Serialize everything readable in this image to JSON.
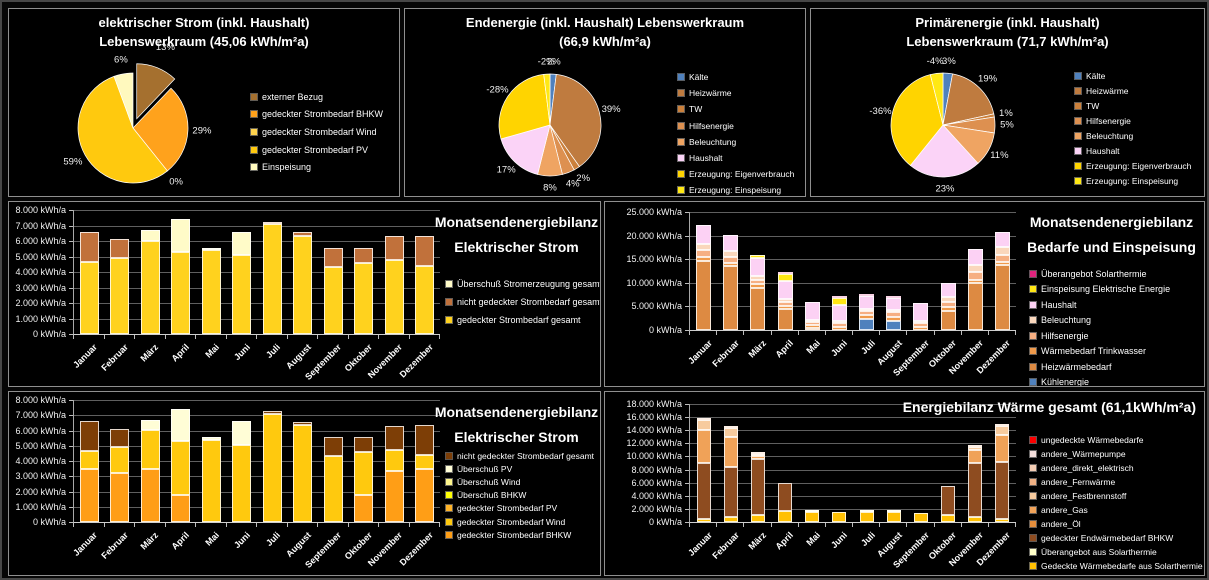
{
  "colors": {
    "background": "#000000",
    "panel_border": "#8f8f8f",
    "gridline": "#5f5f5f",
    "text": "#ffffff"
  },
  "unit": "kWh/a",
  "months": [
    "Januar",
    "Februar",
    "März",
    "April",
    "Mai",
    "Juni",
    "Juli",
    "August",
    "September",
    "Oktober",
    "November",
    "Dezember"
  ],
  "chart_data": [
    {
      "id": "pie-elektrischer-strom",
      "type": "pie",
      "title_lines": [
        "elektrischer Strom (inkl. Haushalt)",
        "Lebenswerkraum (45,06 kWh/m²a)"
      ],
      "slices": [
        {
          "label": "externer Bezug",
          "pct_label": "13%",
          "value": 13,
          "color": "#A5702F",
          "exploded": true
        },
        {
          "label": "gedeckter Strombedarf BHKW",
          "pct_label": "29%",
          "value": 29,
          "color": "#FFA21C"
        },
        {
          "label": "gedeckter Strombedarf Wind",
          "pct_label": "0%",
          "value": 0,
          "color": "#FFD34D"
        },
        {
          "label": "gedeckter Strombedarf PV",
          "pct_label": "59%",
          "value": 59,
          "color": "#FFC90E"
        },
        {
          "label": "Einspeisung",
          "pct_label": "6%",
          "value": 6,
          "color": "#FFF9BE"
        }
      ]
    },
    {
      "id": "pie-endenergie",
      "type": "pie",
      "title_lines": [
        "Endenergie (inkl. Haushalt) Lebenswerkraum",
        "(66,9 kWh/m²a)"
      ],
      "slices": [
        {
          "label": "Kälte",
          "pct_label": "2%",
          "value": 2,
          "color": "#4F81BD"
        },
        {
          "label": "Heizwärme",
          "pct_label": "39%",
          "value": 39,
          "color": "#BF7B3F"
        },
        {
          "label": "TW",
          "pct_label": "2%",
          "value": 2,
          "color": "#CB803B"
        },
        {
          "label": "Hilfsenergie",
          "pct_label": "4%",
          "value": 4,
          "color": "#DD9050"
        },
        {
          "label": "Beleuchtung",
          "pct_label": "8%",
          "value": 8,
          "color": "#EFA462"
        },
        {
          "label": "Haushalt",
          "pct_label": "17%",
          "value": 17,
          "color": "#FBD3F7"
        },
        {
          "label": "Erzeugung: Eigenverbrauch",
          "pct_label": "-28%",
          "value": 28,
          "color": "#FFD400"
        },
        {
          "label": "Erzeugung: Einspeisung",
          "pct_label": "-2%",
          "value": 2,
          "color": "#FFE814"
        }
      ]
    },
    {
      "id": "pie-primaerenergie",
      "type": "pie",
      "title_lines": [
        "Primärenergie (inkl. Haushalt)",
        "Lebenswerkraum (71,7 kWh/m²a)"
      ],
      "slices": [
        {
          "label": "Kälte",
          "pct_label": "3%",
          "value": 3,
          "color": "#4F81BD"
        },
        {
          "label": "Heizwärme",
          "pct_label": "19%",
          "value": 19,
          "color": "#BF7B3F"
        },
        {
          "label": "TW",
          "pct_label": "1%",
          "value": 1,
          "color": "#CB803B"
        },
        {
          "label": "Hilfsenergie",
          "pct_label": "5%",
          "value": 5,
          "color": "#DD9050"
        },
        {
          "label": "Beleuchtung",
          "pct_label": "11%",
          "value": 11,
          "color": "#EFA462"
        },
        {
          "label": "Haushalt",
          "pct_label": "23%",
          "value": 23,
          "color": "#FBD3F7"
        },
        {
          "label": "Erzeugung: Eigenverbrauch",
          "pct_label": "-36%",
          "value": 36,
          "color": "#FFD400"
        },
        {
          "label": "Erzeugung: Einspeisung",
          "pct_label": "-4%",
          "value": 4,
          "color": "#FFE814"
        }
      ]
    },
    {
      "id": "bar-monatsbilanz-strom-gesamt",
      "type": "bar",
      "stacked": true,
      "title_lines": [
        "Monatsendenergiebilanz",
        "Elektrischer Strom"
      ],
      "y_max": 8000,
      "y_step": 1000,
      "y_unit": "kWh/a",
      "legend_note": "series listed in legend order (top to bottom); bars stack in reverse order from bottom",
      "series": [
        {
          "name": "Überschuß Stromerzeugung gesamt",
          "color": "#FFFBC8",
          "values": [
            0,
            0,
            700,
            2100,
            150,
            1520,
            0,
            0,
            0,
            0,
            0,
            0
          ]
        },
        {
          "name": "nicht gedeckter Strombedarf gesamt",
          "color": "#C1713B",
          "values": [
            1950,
            1200,
            0,
            0,
            0,
            0,
            150,
            200,
            1200,
            950,
            1550,
            1950
          ]
        },
        {
          "name": "gedeckter Strombedarf gesamt",
          "color": "#FFD21E",
          "values": [
            4650,
            4900,
            6000,
            5300,
            5400,
            5080,
            7100,
            6350,
            4350,
            4600,
            4750,
            4400
          ]
        }
      ]
    },
    {
      "id": "bar-bedarfe-einspeisung",
      "type": "bar",
      "stacked": true,
      "title_lines": [
        "Monatsendenergiebilanz",
        "Bedarfe und Einspeisung"
      ],
      "y_max": 25000,
      "y_step": 5000,
      "y_unit": "kWh/a",
      "legend_note": "series listed in legend order (top to bottom); bars stack in reverse order from bottom",
      "series": [
        {
          "name": "Überangebot Solarthermie",
          "color": "#E0247E",
          "values": [
            0,
            0,
            0,
            100,
            0,
            200,
            300,
            300,
            0,
            0,
            0,
            0
          ]
        },
        {
          "name": "Einspeisung Elektrische Energie",
          "color": "#FFE614",
          "values": [
            0,
            0,
            700,
            1500,
            0,
            1500,
            0,
            0,
            0,
            0,
            0,
            0
          ]
        },
        {
          "name": "Haushalt",
          "color": "#FCD1F4",
          "values": [
            3900,
            3400,
            3800,
            3800,
            3800,
            3400,
            2700,
            2500,
            3800,
            3000,
            3400,
            3300
          ]
        },
        {
          "name": "Beleuchtung",
          "color": "#FAD7BC",
          "values": [
            1400,
            1300,
            800,
            600,
            300,
            300,
            400,
            400,
            300,
            1000,
            1600,
            1600
          ]
        },
        {
          "name": "Hilfsenergie",
          "color": "#F6AF82",
          "values": [
            1500,
            1300,
            1000,
            800,
            600,
            800,
            1000,
            1100,
            800,
            1100,
            1500,
            1500
          ]
        },
        {
          "name": "Wärmebedarf Trinkwasser",
          "color": "#F09A4B",
          "values": [
            700,
            700,
            700,
            700,
            700,
            700,
            700,
            700,
            700,
            700,
            700,
            700
          ]
        },
        {
          "name": "Heizwärmebedarf",
          "color": "#DD8A42",
          "values": [
            14700,
            13500,
            9000,
            4400,
            300,
            0,
            0,
            0,
            0,
            4100,
            10000,
            13700
          ]
        },
        {
          "name": "Kühlenergie",
          "color": "#4F81BD",
          "values": [
            0,
            0,
            0,
            0,
            0,
            0,
            2400,
            2000,
            0,
            0,
            0,
            0
          ]
        }
      ]
    },
    {
      "id": "bar-monatsbilanz-strom-detail",
      "type": "bar",
      "stacked": true,
      "title_lines": [
        "Monatsendenergiebilanz",
        "Elektrischer Strom"
      ],
      "y_max": 8000,
      "y_step": 1000,
      "y_unit": "kWh/a",
      "legend_note": "series listed in legend order (top to bottom); bars stack in reverse order from bottom",
      "series": [
        {
          "name": "nicht gedeckter Strombedarf gesamt",
          "color": "#7D3E06",
          "values": [
            1950,
            1200,
            0,
            0,
            0,
            0,
            150,
            200,
            1200,
            950,
            1550,
            1950
          ]
        },
        {
          "name": "Überschuß PV",
          "color": "#FFFDD6",
          "values": [
            0,
            0,
            650,
            2100,
            150,
            1520,
            0,
            0,
            0,
            0,
            0,
            0
          ]
        },
        {
          "name": "Überschuß Wind",
          "color": "#FFF68C",
          "values": [
            0,
            0,
            0,
            0,
            0,
            0,
            0,
            0,
            0,
            0,
            0,
            0
          ]
        },
        {
          "name": "Überschuß BHKW",
          "color": "#FFFF05",
          "values": [
            0,
            0,
            0,
            0,
            0,
            0,
            0,
            0,
            0,
            0,
            0,
            0
          ]
        },
        {
          "name": "gedeckter Strombedarf PV",
          "color": "#FFB327",
          "values": [
            0,
            0,
            0,
            0,
            0,
            0,
            0,
            0,
            0,
            0,
            0,
            0
          ]
        },
        {
          "name": "gedeckter Strombedarf Wind",
          "color": "#FFC90E",
          "values": [
            1150,
            1700,
            2550,
            3550,
            5400,
            5080,
            7100,
            6350,
            4350,
            2800,
            1400,
            900
          ]
        },
        {
          "name": "gedeckter Strombedarf BHKW",
          "color": "#FF9E16",
          "values": [
            3500,
            3200,
            3500,
            1750,
            0,
            0,
            0,
            0,
            0,
            1800,
            3350,
            3500
          ]
        }
      ]
    },
    {
      "id": "bar-energiebilanz-waerme",
      "type": "bar",
      "stacked": true,
      "title_lines": [
        "Energiebilanz Wärme gesamt (61,1kWh/m²a)"
      ],
      "y_max": 18000,
      "y_step": 2000,
      "y_unit": "kWh/a",
      "legend_note": "series listed in legend order (top to bottom); bars stack in reverse order from bottom",
      "series": [
        {
          "name": "ungedeckte Wärmebedarfe",
          "color": "#FE0000",
          "values": [
            0,
            0,
            0,
            0,
            0,
            0,
            0,
            0,
            0,
            0,
            0,
            0
          ]
        },
        {
          "name": "andere_Wärmepumpe",
          "color": "#F3DEDC",
          "values": [
            0,
            0,
            0,
            0,
            0,
            0,
            0,
            0,
            0,
            0,
            0,
            0
          ]
        },
        {
          "name": "andere_direkt_elektrisch",
          "color": "#F4CDB4",
          "values": [
            0,
            0,
            0,
            0,
            0,
            0,
            0,
            0,
            0,
            0,
            0,
            0
          ]
        },
        {
          "name": "andere_Fernwärme",
          "color": "#F0B184",
          "values": [
            400,
            300,
            100,
            0,
            0,
            0,
            0,
            0,
            0,
            0,
            200,
            300
          ]
        },
        {
          "name": "andere_Festbrennstoff",
          "color": "#F7CB9E",
          "values": [
            1500,
            1400,
            200,
            0,
            0,
            0,
            0,
            0,
            0,
            0,
            500,
            1300
          ]
        },
        {
          "name": "andere_Gas",
          "color": "#F0A258",
          "values": [
            5000,
            4500,
            400,
            0,
            0,
            0,
            0,
            0,
            0,
            0,
            2000,
            4200
          ]
        },
        {
          "name": "andere_Öl",
          "color": "#E58E3C",
          "values": [
            0,
            0,
            0,
            0,
            0,
            0,
            0,
            0,
            0,
            0,
            0,
            0
          ]
        },
        {
          "name": "gedeckter Endwärmebedarf BHKW",
          "color": "#8E4C20",
          "values": [
            8500,
            7700,
            8600,
            4300,
            0,
            0,
            0,
            0,
            0,
            4400,
            8300,
            8600
          ]
        },
        {
          "name": "Überangebot aus Solarthermie",
          "color": "#FFFFC9",
          "values": [
            0,
            0,
            0,
            0,
            100,
            0,
            250,
            400,
            0,
            0,
            0,
            0
          ]
        },
        {
          "name": "Gedeckte Wärmebedarfe aus Solarthermie",
          "color": "#FFC003",
          "values": [
            500,
            700,
            1000,
            1700,
            1500,
            1500,
            1500,
            1500,
            1400,
            1100,
            700,
            500
          ]
        }
      ]
    }
  ]
}
